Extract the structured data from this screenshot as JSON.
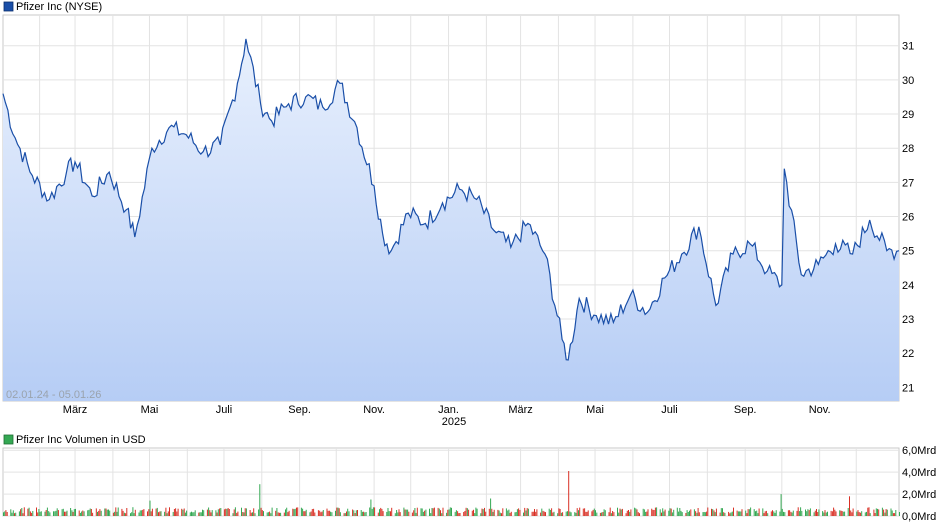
{
  "chart_data": [
    {
      "type": "area",
      "legend": "Pfizer Inc (NYSE)",
      "range_label": "02.01.24 - 05.01.26",
      "x_tick_labels": [
        "März",
        "Mai",
        "Juli",
        "Sep.",
        "Nov.",
        "Jan.",
        "März",
        "Mai",
        "Juli",
        "Sep.",
        "Nov."
      ],
      "year_label": "2025",
      "y_ticks": [
        21,
        22,
        23,
        24,
        25,
        26,
        27,
        28,
        29,
        30,
        31
      ],
      "ylim": [
        20.6,
        31.9
      ],
      "x": [
        "2024-01-02",
        "2024-01-12",
        "2024-01-26",
        "2024-02-09",
        "2024-02-23",
        "2024-03-01",
        "2024-03-15",
        "2024-03-29",
        "2024-04-12",
        "2024-04-19",
        "2024-05-03",
        "2024-05-17",
        "2024-05-31",
        "2024-06-14",
        "2024-06-28",
        "2024-07-12",
        "2024-07-19",
        "2024-07-31",
        "2024-08-09",
        "2024-08-23",
        "2024-09-06",
        "2024-09-20",
        "2024-10-04",
        "2024-10-18",
        "2024-11-01",
        "2024-11-08",
        "2024-11-15",
        "2024-11-29",
        "2024-12-13",
        "2024-12-27",
        "2025-01-10",
        "2025-01-24",
        "2025-02-07",
        "2025-02-21",
        "2025-03-07",
        "2025-03-21",
        "2025-04-04",
        "2025-04-09",
        "2025-04-18",
        "2025-05-02",
        "2025-05-16",
        "2025-05-30",
        "2025-06-13",
        "2025-06-27",
        "2025-07-11",
        "2025-07-25",
        "2025-08-08",
        "2025-08-22",
        "2025-09-05",
        "2025-09-19",
        "2025-10-01",
        "2025-10-03",
        "2025-10-17",
        "2025-10-31",
        "2025-11-14",
        "2025-11-28",
        "2025-12-12",
        "2025-12-26",
        "2026-01-05"
      ],
      "values": [
        29.6,
        28.3,
        27.2,
        26.5,
        27.3,
        27.6,
        26.6,
        27.3,
        26.2,
        25.4,
        28.0,
        28.6,
        28.4,
        27.9,
        28.1,
        29.9,
        31.2,
        29.3,
        28.8,
        29.3,
        29.5,
        29.2,
        29.9,
        28.6,
        26.9,
        25.5,
        25.0,
        26.1,
        25.8,
        26.4,
        26.8,
        26.5,
        25.6,
        25.1,
        25.8,
        24.9,
        22.4,
        21.8,
        23.6,
        23.1,
        22.9,
        23.7,
        23.2,
        24.2,
        24.9,
        25.7,
        23.4,
        24.9,
        25.2,
        24.4,
        24.0,
        27.4,
        24.3,
        24.6,
        25.2,
        24.9,
        25.9,
        25.0,
        25.0
      ],
      "area_gradient": [
        "#e8f0fd",
        "#b6cdf5"
      ],
      "line_color": "#1a4fa8"
    },
    {
      "type": "bar",
      "legend": "Pfizer Inc Volumen in USD",
      "y_tick_labels": [
        "0,0Mrd",
        "2,0Mrd",
        "4,0Mrd",
        "6,0Mrd"
      ],
      "y_tick_values": [
        0,
        2,
        4,
        6
      ],
      "ylim": [
        0,
        6.2
      ],
      "unit": "Mrd USD",
      "spike_dates": [
        "2024-05-01",
        "2024-07-30",
        "2024-10-29",
        "2025-02-04",
        "2025-04-09",
        "2025-09-30",
        "2025-11-25"
      ],
      "spike_values": [
        1.4,
        2.9,
        1.5,
        1.6,
        4.1,
        2.0,
        1.8
      ],
      "typical_range": [
        0.25,
        0.8
      ],
      "colors": [
        "#34a853",
        "#d93025"
      ]
    }
  ]
}
